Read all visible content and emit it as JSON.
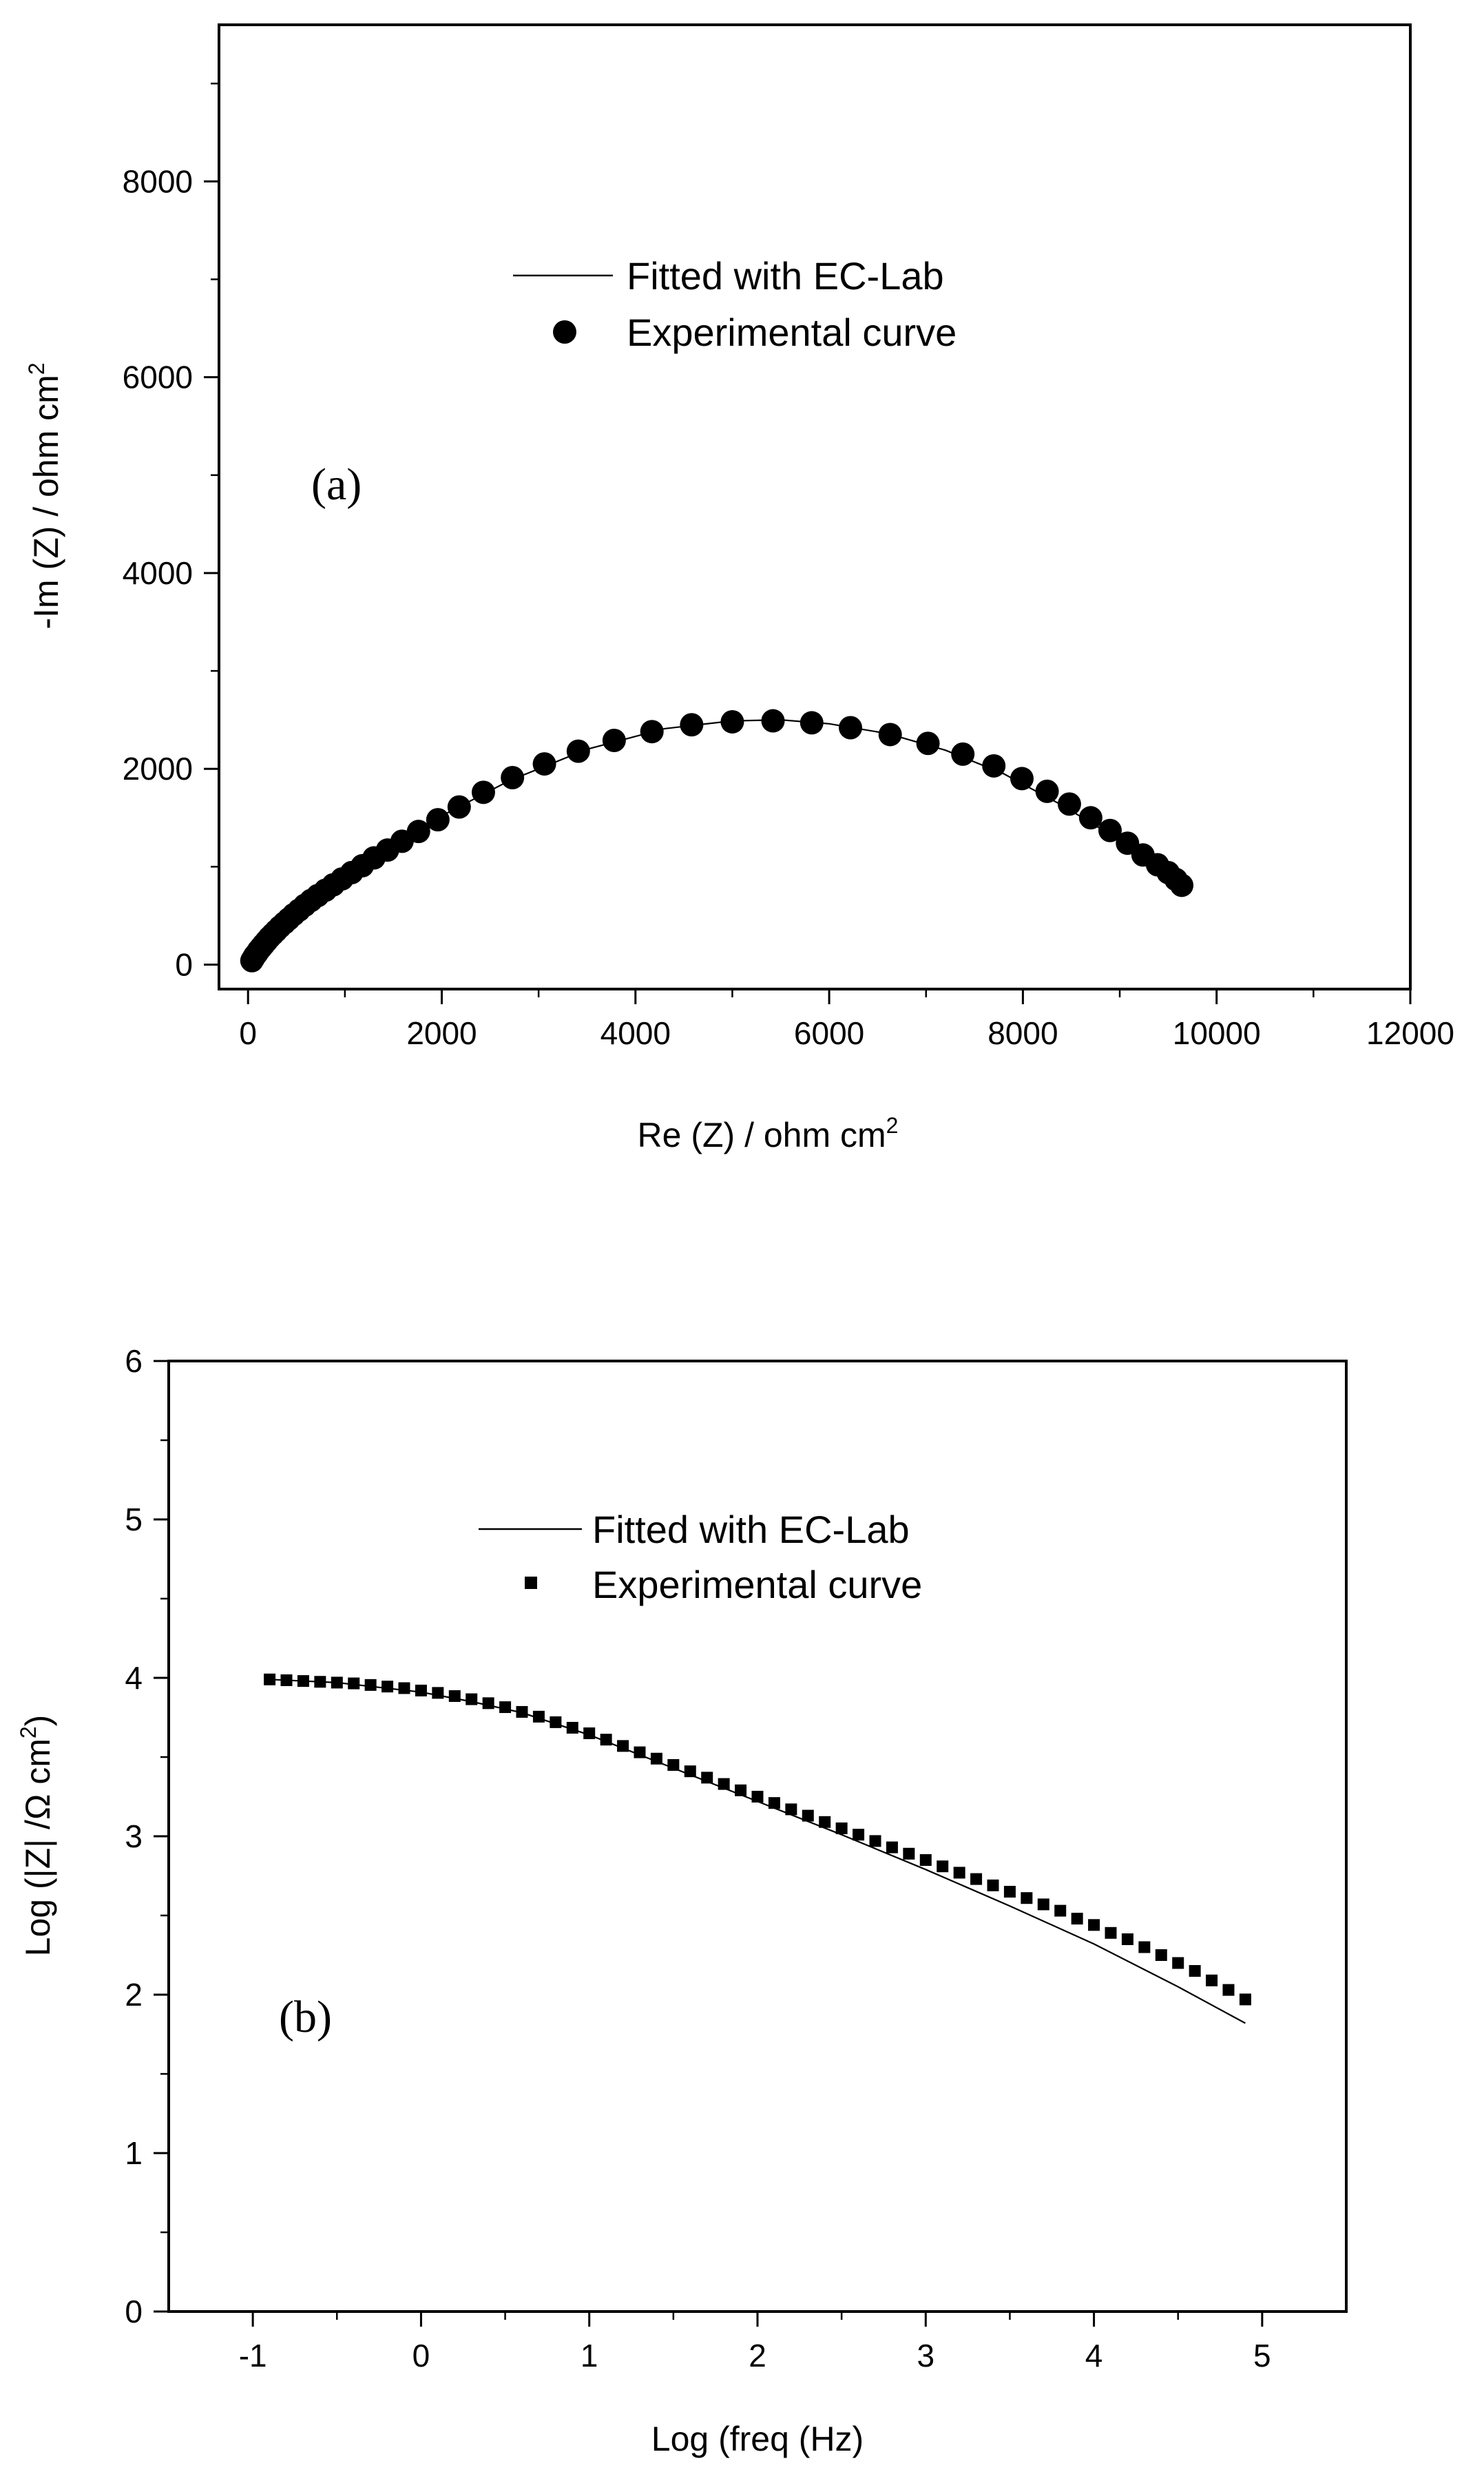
{
  "chart_data": [
    {
      "id": "a",
      "type": "scatter",
      "panel_label": "(a)",
      "xlabel": "Re (Z) / ohm cm",
      "xlabel_sup": "2",
      "ylabel": "-Im (Z) / ohm cm",
      "ylabel_sup": "2",
      "xlim": [
        -300,
        12000
      ],
      "ylim": [
        -250,
        9600
      ],
      "xticks": [
        0,
        2000,
        4000,
        6000,
        8000,
        10000,
        12000
      ],
      "xtick_labels": [
        "0",
        "2000",
        "4000",
        "6000",
        "8000",
        "10000",
        "12000"
      ],
      "yticks": [
        0,
        2000,
        4000,
        6000,
        8000
      ],
      "ytick_labels": [
        "0",
        "2000",
        "4000",
        "6000",
        "8000"
      ],
      "legend": [
        "Fitted with EC-Lab",
        "Experimental curve"
      ],
      "legend_position": "top-center",
      "series": [
        {
          "name": "Experimental curve",
          "marker": "circle",
          "x": [
            40,
            55,
            70,
            90,
            110,
            135,
            160,
            190,
            220,
            255,
            290,
            330,
            375,
            420,
            470,
            525,
            585,
            650,
            720,
            800,
            880,
            970,
            1070,
            1180,
            1300,
            1440,
            1590,
            1760,
            1960,
            2180,
            2430,
            2730,
            3060,
            3410,
            3780,
            4170,
            4580,
            5000,
            5420,
            5820,
            6220,
            6630,
            7020,
            7380,
            7700,
            7990,
            8250,
            8480,
            8700,
            8900,
            9080,
            9240,
            9390,
            9500,
            9580,
            9640
          ],
          "y": [
            40,
            65,
            90,
            115,
            145,
            175,
            205,
            240,
            275,
            310,
            345,
            385,
            425,
            465,
            510,
            555,
            605,
            655,
            705,
            760,
            815,
            875,
            940,
            1010,
            1090,
            1170,
            1260,
            1360,
            1480,
            1610,
            1760,
            1910,
            2050,
            2180,
            2290,
            2380,
            2450,
            2480,
            2490,
            2470,
            2420,
            2350,
            2260,
            2150,
            2030,
            1900,
            1770,
            1640,
            1500,
            1370,
            1240,
            1120,
            1020,
            940,
            870,
            810
          ]
        },
        {
          "name": "Fitted with EC-Lab",
          "marker": "line",
          "x": [
            40,
            200,
            500,
            900,
            1400,
            2000,
            2700,
            3500,
            4300,
            5000,
            5500,
            6000,
            6600,
            7200,
            7800,
            8400,
            8900,
            9300,
            9640
          ],
          "y": [
            40,
            250,
            500,
            800,
            1150,
            1520,
            1880,
            2200,
            2410,
            2490,
            2500,
            2460,
            2360,
            2190,
            1950,
            1630,
            1330,
            1060,
            810
          ]
        }
      ]
    },
    {
      "id": "b",
      "type": "scatter",
      "panel_label": "(b)",
      "xlabel": "Log (freq (Hz)",
      "ylabel": "Log (|Z| /Ω cm",
      "ylabel_sup": "2",
      "ylabel_suffix": ")",
      "xlim": [
        -1.5,
        5.5
      ],
      "ylim": [
        0,
        6
      ],
      "xticks": [
        -1,
        0,
        1,
        2,
        3,
        4,
        5
      ],
      "xtick_labels": [
        "-1",
        "0",
        "1",
        "2",
        "3",
        "4",
        "5"
      ],
      "yticks": [
        0,
        1,
        2,
        3,
        4,
        5,
        6
      ],
      "ytick_labels": [
        "0",
        "1",
        "2",
        "3",
        "4",
        "5",
        "6"
      ],
      "legend": [
        "Fitted with EC-Lab",
        "Experimental curve"
      ],
      "legend_position": "top-center",
      "series": [
        {
          "name": "Experimental curve",
          "marker": "square",
          "x": [
            -0.9,
            -0.8,
            -0.7,
            -0.6,
            -0.5,
            -0.4,
            -0.3,
            -0.2,
            -0.1,
            0.0,
            0.1,
            0.2,
            0.3,
            0.4,
            0.5,
            0.6,
            0.7,
            0.8,
            0.9,
            1.0,
            1.1,
            1.2,
            1.3,
            1.4,
            1.5,
            1.6,
            1.7,
            1.8,
            1.9,
            2.0,
            2.1,
            2.2,
            2.3,
            2.4,
            2.5,
            2.6,
            2.7,
            2.8,
            2.9,
            3.0,
            3.1,
            3.2,
            3.3,
            3.4,
            3.5,
            3.6,
            3.7,
            3.8,
            3.9,
            4.0,
            4.1,
            4.2,
            4.3,
            4.4,
            4.5,
            4.6,
            4.7,
            4.8,
            4.9
          ],
          "y": [
            3.99,
            3.985,
            3.98,
            3.975,
            3.97,
            3.965,
            3.955,
            3.945,
            3.935,
            3.92,
            3.905,
            3.885,
            3.865,
            3.84,
            3.815,
            3.785,
            3.755,
            3.72,
            3.685,
            3.65,
            3.61,
            3.57,
            3.53,
            3.49,
            3.45,
            3.41,
            3.37,
            3.33,
            3.29,
            3.25,
            3.21,
            3.17,
            3.13,
            3.09,
            3.05,
            3.01,
            2.97,
            2.93,
            2.89,
            2.85,
            2.81,
            2.77,
            2.73,
            2.69,
            2.65,
            2.61,
            2.57,
            2.53,
            2.48,
            2.44,
            2.39,
            2.35,
            2.3,
            2.25,
            2.2,
            2.15,
            2.09,
            2.03,
            1.97
          ]
        },
        {
          "name": "Fitted with EC-Lab",
          "marker": "line",
          "x": [
            -0.9,
            -0.5,
            0.0,
            0.3,
            0.6,
            1.0,
            1.5,
            2.0,
            2.5,
            3.0,
            3.5,
            4.0,
            4.5,
            4.9
          ],
          "y": [
            3.99,
            3.97,
            3.91,
            3.85,
            3.78,
            3.64,
            3.43,
            3.22,
            3.01,
            2.79,
            2.56,
            2.32,
            2.05,
            1.82
          ]
        }
      ]
    }
  ]
}
